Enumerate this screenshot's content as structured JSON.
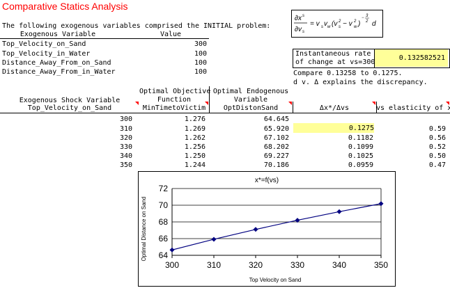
{
  "sheet": {
    "title": "Comparative Statics Analysis",
    "intro": "The following exogenous variables comprised the INITIAL problem:",
    "exo_header": {
      "variable": "Exogenous Variable",
      "value": "Value"
    },
    "exo_rows": [
      {
        "name": "Top_Velocity_on_Sand",
        "value": "300"
      },
      {
        "name": "Top_Velocity_in_Water",
        "value": "100"
      },
      {
        "name": "Distance_Away_From_on_Sand",
        "value": "100"
      },
      {
        "name": "Distance_Away_From_in_Water",
        "value": "100"
      }
    ],
    "rate": {
      "label_line1": "Instantaneous rate",
      "label_line2": "of change at vs=300",
      "value": "0.132582521"
    },
    "compare_line": "Compare 0.13258 to 0.1275.",
    "explain_line": "d v. Δ explains the discrepancy.",
    "table_headers": {
      "col1_line1": "Exogenous Shock Variable",
      "col1_line2": "Top_Velocity_on_Sand",
      "col2_line1": "Optimal Objective",
      "col2_line2": "Function",
      "col2_line3": "MinTimetoVictim",
      "col3_line1": "Optimal Endogenous",
      "col3_line2": "Variable",
      "col3_line3": "OptDistonSand",
      "col4": "Δx*/Δvs",
      "col5": "vs elasticity of x*"
    },
    "table_rows": [
      {
        "shock": "300",
        "objective": "1.276",
        "endog": "64.645",
        "ratio": "",
        "elasticity": ""
      },
      {
        "shock": "310",
        "objective": "1.269",
        "endog": "65.920",
        "ratio": "0.1275",
        "elasticity": "0.59"
      },
      {
        "shock": "320",
        "objective": "1.262",
        "endog": "67.102",
        "ratio": "0.1182",
        "elasticity": "0.56"
      },
      {
        "shock": "330",
        "objective": "1.256",
        "endog": "68.202",
        "ratio": "0.1099",
        "elasticity": "0.52"
      },
      {
        "shock": "340",
        "objective": "1.250",
        "endog": "69.227",
        "ratio": "0.1025",
        "elasticity": "0.50"
      },
      {
        "shock": "350",
        "objective": "1.244",
        "endog": "70.186",
        "ratio": "0.0959",
        "elasticity": "0.47"
      }
    ]
  },
  "colors": {
    "title": "#ff0000",
    "highlight": "#ffff99",
    "marker": "#000080",
    "comment_triangle": "#ff0000"
  },
  "chart_data": {
    "type": "line",
    "title": "x*=f(vs)",
    "xlabel": "Top Velocity on Sand",
    "ylabel": "Optimal Distance on Sand",
    "x": [
      300,
      310,
      320,
      330,
      340,
      350
    ],
    "series": [
      {
        "values": [
          64.645,
          65.92,
          67.102,
          68.202,
          69.227,
          70.186
        ]
      }
    ],
    "xlim": [
      300,
      350
    ],
    "ylim": [
      64,
      72
    ],
    "xticks": [
      "300",
      "310",
      "320",
      "330",
      "340",
      "350"
    ],
    "yticks": [
      "64",
      "66",
      "68",
      "70",
      "72"
    ],
    "grid": "horizontal",
    "legend": "none"
  }
}
